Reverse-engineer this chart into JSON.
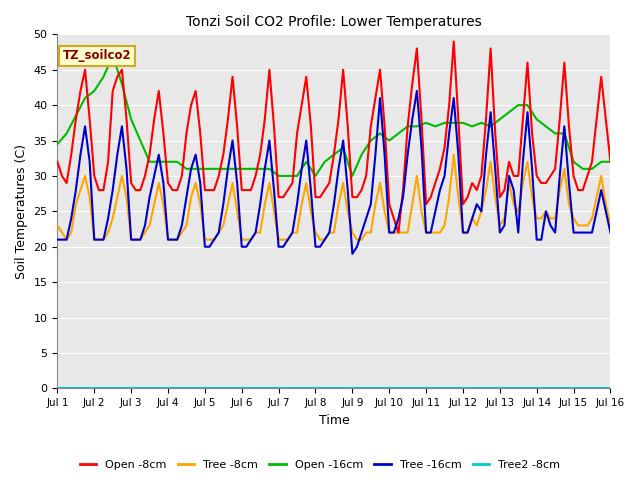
{
  "title": "Tonzi Soil CO2 Profile: Lower Temperatures",
  "xlabel": "Time",
  "ylabel": "Soil Temperatures (C)",
  "xlim": [
    0,
    15
  ],
  "ylim": [
    0,
    50
  ],
  "yticks": [
    0,
    5,
    10,
    15,
    20,
    25,
    30,
    35,
    40,
    45,
    50
  ],
  "xtick_labels": [
    "Jul 1",
    "Jul 2",
    "Jul 3",
    "Jul 4",
    "Jul 5",
    "Jul 6",
    "Jul 7",
    "Jul 8",
    "Jul 9",
    "Jul 10",
    "Jul 11",
    "Jul 12",
    "Jul 13",
    "Jul 14",
    "Jul 15",
    "Jul 16"
  ],
  "xtick_values": [
    0,
    1,
    2,
    3,
    4,
    5,
    6,
    7,
    8,
    9,
    10,
    11,
    12,
    13,
    14,
    15
  ],
  "annotation_text": "TZ_soilco2",
  "annotation_color": "#8B0000",
  "annotation_bg": "#FFFFCC",
  "annotation_border": "#DAA520",
  "plot_bg": "#E8E8E8",
  "fig_bg": "#FFFFFF",
  "legend_entries": [
    "Open -8cm",
    "Tree -8cm",
    "Open -16cm",
    "Tree -16cm",
    "Tree2 -8cm"
  ],
  "line_colors": [
    "#FF0000",
    "#FFA500",
    "#00BB00",
    "#0000CC",
    "#00CCCC"
  ],
  "open8_x": [
    0.0,
    0.125,
    0.25,
    0.375,
    0.5,
    0.625,
    0.75,
    0.875,
    1.0,
    1.125,
    1.25,
    1.375,
    1.5,
    1.625,
    1.75,
    1.875,
    2.0,
    2.125,
    2.25,
    2.375,
    2.5,
    2.625,
    2.75,
    2.875,
    3.0,
    3.125,
    3.25,
    3.375,
    3.5,
    3.625,
    3.75,
    3.875,
    4.0,
    4.125,
    4.25,
    4.375,
    4.5,
    4.625,
    4.75,
    4.875,
    5.0,
    5.125,
    5.25,
    5.375,
    5.5,
    5.625,
    5.75,
    5.875,
    6.0,
    6.125,
    6.25,
    6.375,
    6.5,
    6.625,
    6.75,
    6.875,
    7.0,
    7.125,
    7.25,
    7.375,
    7.5,
    7.625,
    7.75,
    7.875,
    8.0,
    8.125,
    8.25,
    8.375,
    8.5,
    8.625,
    8.75,
    8.875,
    9.0,
    9.125,
    9.25,
    9.375,
    9.5,
    9.625,
    9.75,
    9.875,
    10.0,
    10.125,
    10.25,
    10.375,
    10.5,
    10.625,
    10.75,
    10.875,
    11.0,
    11.125,
    11.25,
    11.375,
    11.5,
    11.625,
    11.75,
    11.875,
    12.0,
    12.125,
    12.25,
    12.375,
    12.5,
    12.625,
    12.75,
    12.875,
    13.0,
    13.125,
    13.25,
    13.375,
    13.5,
    13.625,
    13.75,
    13.875,
    14.0,
    14.125,
    14.25,
    14.375,
    14.5,
    14.625,
    14.75,
    14.875,
    15.0
  ],
  "open8_y": [
    32,
    30,
    29,
    33,
    38,
    42,
    45,
    38,
    30,
    28,
    28,
    32,
    42,
    44,
    45,
    38,
    29,
    28,
    28,
    30,
    33,
    38,
    42,
    36,
    29,
    28,
    28,
    30,
    36,
    40,
    42,
    36,
    28,
    28,
    28,
    30,
    33,
    38,
    44,
    37,
    28,
    28,
    28,
    30,
    33,
    38,
    45,
    37,
    27,
    27,
    28,
    29,
    36,
    40,
    44,
    37,
    27,
    27,
    28,
    29,
    33,
    38,
    45,
    37,
    27,
    27,
    28,
    30,
    37,
    41,
    45,
    37,
    26,
    24,
    22,
    28,
    37,
    43,
    48,
    38,
    26,
    27,
    29,
    31,
    34,
    40,
    49,
    38,
    26,
    27,
    29,
    28,
    30,
    38,
    48,
    36,
    27,
    28,
    32,
    30,
    30,
    38,
    46,
    36,
    30,
    29,
    29,
    30,
    31,
    38,
    46,
    37,
    30,
    28,
    28,
    30,
    32,
    38,
    44,
    38,
    32
  ],
  "tree8_x": [
    0.0,
    0.125,
    0.25,
    0.375,
    0.5,
    0.625,
    0.75,
    0.875,
    1.0,
    1.125,
    1.25,
    1.375,
    1.5,
    1.625,
    1.75,
    1.875,
    2.0,
    2.125,
    2.25,
    2.375,
    2.5,
    2.625,
    2.75,
    2.875,
    3.0,
    3.125,
    3.25,
    3.375,
    3.5,
    3.625,
    3.75,
    3.875,
    4.0,
    4.125,
    4.25,
    4.375,
    4.5,
    4.625,
    4.75,
    4.875,
    5.0,
    5.125,
    5.25,
    5.375,
    5.5,
    5.625,
    5.75,
    5.875,
    6.0,
    6.125,
    6.25,
    6.375,
    6.5,
    6.625,
    6.75,
    6.875,
    7.0,
    7.125,
    7.25,
    7.375,
    7.5,
    7.625,
    7.75,
    7.875,
    8.0,
    8.125,
    8.25,
    8.375,
    8.5,
    8.625,
    8.75,
    8.875,
    9.0,
    9.125,
    9.25,
    9.375,
    9.5,
    9.625,
    9.75,
    9.875,
    10.0,
    10.125,
    10.25,
    10.375,
    10.5,
    10.625,
    10.75,
    10.875,
    11.0,
    11.125,
    11.25,
    11.375,
    11.5,
    11.625,
    11.75,
    11.875,
    12.0,
    12.125,
    12.25,
    12.375,
    12.5,
    12.625,
    12.75,
    12.875,
    13.0,
    13.125,
    13.25,
    13.375,
    13.5,
    13.625,
    13.75,
    13.875,
    14.0,
    14.125,
    14.25,
    14.375,
    14.5,
    14.625,
    14.75,
    14.875,
    15.0
  ],
  "tree8_y": [
    23,
    22,
    21,
    22,
    26,
    28,
    30,
    27,
    21,
    21,
    21,
    22,
    24,
    27,
    30,
    27,
    21,
    21,
    21,
    22,
    23,
    26,
    29,
    26,
    21,
    21,
    21,
    22,
    23,
    27,
    29,
    26,
    21,
    21,
    21,
    22,
    23,
    26,
    29,
    25,
    21,
    21,
    21,
    22,
    22,
    26,
    29,
    25,
    21,
    21,
    21,
    22,
    22,
    26,
    29,
    25,
    22,
    21,
    21,
    22,
    22,
    26,
    29,
    25,
    22,
    21,
    21,
    22,
    22,
    26,
    29,
    25,
    22,
    22,
    22,
    22,
    22,
    26,
    30,
    25,
    22,
    22,
    22,
    22,
    23,
    27,
    33,
    27,
    22,
    22,
    24,
    23,
    25,
    28,
    32,
    27,
    23,
    24,
    29,
    26,
    25,
    29,
    32,
    27,
    24,
    24,
    25,
    24,
    24,
    28,
    31,
    26,
    24,
    23,
    23,
    23,
    24,
    27,
    30,
    26,
    23
  ],
  "open16_x": [
    0.0,
    0.25,
    0.5,
    0.75,
    1.0,
    1.25,
    1.5,
    1.75,
    2.0,
    2.25,
    2.5,
    2.75,
    3.0,
    3.25,
    3.5,
    3.75,
    4.0,
    4.25,
    4.5,
    4.75,
    5.0,
    5.25,
    5.5,
    5.75,
    6.0,
    6.25,
    6.5,
    6.75,
    7.0,
    7.25,
    7.5,
    7.75,
    8.0,
    8.25,
    8.5,
    8.75,
    9.0,
    9.25,
    9.5,
    9.75,
    10.0,
    10.25,
    10.5,
    10.75,
    11.0,
    11.25,
    11.5,
    11.75,
    12.0,
    12.25,
    12.5,
    12.75,
    13.0,
    13.25,
    13.5,
    13.75,
    14.0,
    14.25,
    14.5,
    14.75,
    15.0
  ],
  "open16_y": [
    34.5,
    36,
    38.5,
    41,
    42,
    44,
    47,
    43,
    38,
    35,
    32,
    32,
    32,
    32,
    31,
    31,
    31,
    31,
    31,
    31,
    31,
    31,
    31,
    31,
    30,
    30,
    30,
    32,
    30,
    32,
    33,
    34,
    30,
    33,
    35,
    36,
    35,
    36,
    37,
    37,
    37.5,
    37,
    37.5,
    37.5,
    37.5,
    37,
    37.5,
    37,
    38,
    39,
    40,
    40,
    38,
    37,
    36,
    36,
    32,
    31,
    31,
    32,
    32
  ],
  "tree16_x": [
    0.0,
    0.125,
    0.25,
    0.375,
    0.5,
    0.625,
    0.75,
    0.875,
    1.0,
    1.125,
    1.25,
    1.375,
    1.5,
    1.625,
    1.75,
    1.875,
    2.0,
    2.125,
    2.25,
    2.375,
    2.5,
    2.625,
    2.75,
    2.875,
    3.0,
    3.125,
    3.25,
    3.375,
    3.5,
    3.625,
    3.75,
    3.875,
    4.0,
    4.125,
    4.25,
    4.375,
    4.5,
    4.625,
    4.75,
    4.875,
    5.0,
    5.125,
    5.25,
    5.375,
    5.5,
    5.625,
    5.75,
    5.875,
    6.0,
    6.125,
    6.25,
    6.375,
    6.5,
    6.625,
    6.75,
    6.875,
    7.0,
    7.125,
    7.25,
    7.375,
    7.5,
    7.625,
    7.75,
    7.875,
    8.0,
    8.125,
    8.25,
    8.375,
    8.5,
    8.625,
    8.75,
    8.875,
    9.0,
    9.125,
    9.25,
    9.375,
    9.5,
    9.625,
    9.75,
    9.875,
    10.0,
    10.125,
    10.25,
    10.375,
    10.5,
    10.625,
    10.75,
    10.875,
    11.0,
    11.125,
    11.25,
    11.375,
    11.5,
    11.625,
    11.75,
    11.875,
    12.0,
    12.125,
    12.25,
    12.375,
    12.5,
    12.625,
    12.75,
    12.875,
    13.0,
    13.125,
    13.25,
    13.375,
    13.5,
    13.625,
    13.75,
    13.875,
    14.0,
    14.125,
    14.25,
    14.375,
    14.5,
    14.625,
    14.75,
    14.875,
    15.0
  ],
  "tree16_y": [
    21,
    21,
    21,
    24,
    28,
    33,
    37,
    32,
    21,
    21,
    21,
    24,
    28,
    33,
    37,
    31,
    21,
    21,
    21,
    23,
    27,
    30,
    33,
    29,
    21,
    21,
    21,
    23,
    27,
    31,
    33,
    29,
    20,
    20,
    21,
    22,
    26,
    31,
    35,
    29,
    20,
    20,
    21,
    22,
    26,
    31,
    35,
    28,
    20,
    20,
    21,
    22,
    26,
    31,
    35,
    28,
    20,
    20,
    21,
    22,
    26,
    31,
    35,
    28,
    19,
    20,
    22,
    24,
    26,
    33,
    41,
    33,
    22,
    22,
    24,
    27,
    33,
    38,
    42,
    34,
    22,
    22,
    25,
    28,
    30,
    36,
    41,
    33,
    22,
    22,
    24,
    26,
    25,
    33,
    39,
    31,
    22,
    23,
    30,
    28,
    22,
    32,
    39,
    31,
    21,
    21,
    25,
    23,
    22,
    30,
    37,
    29,
    22,
    22,
    22,
    22,
    22,
    25,
    28,
    25,
    22
  ]
}
